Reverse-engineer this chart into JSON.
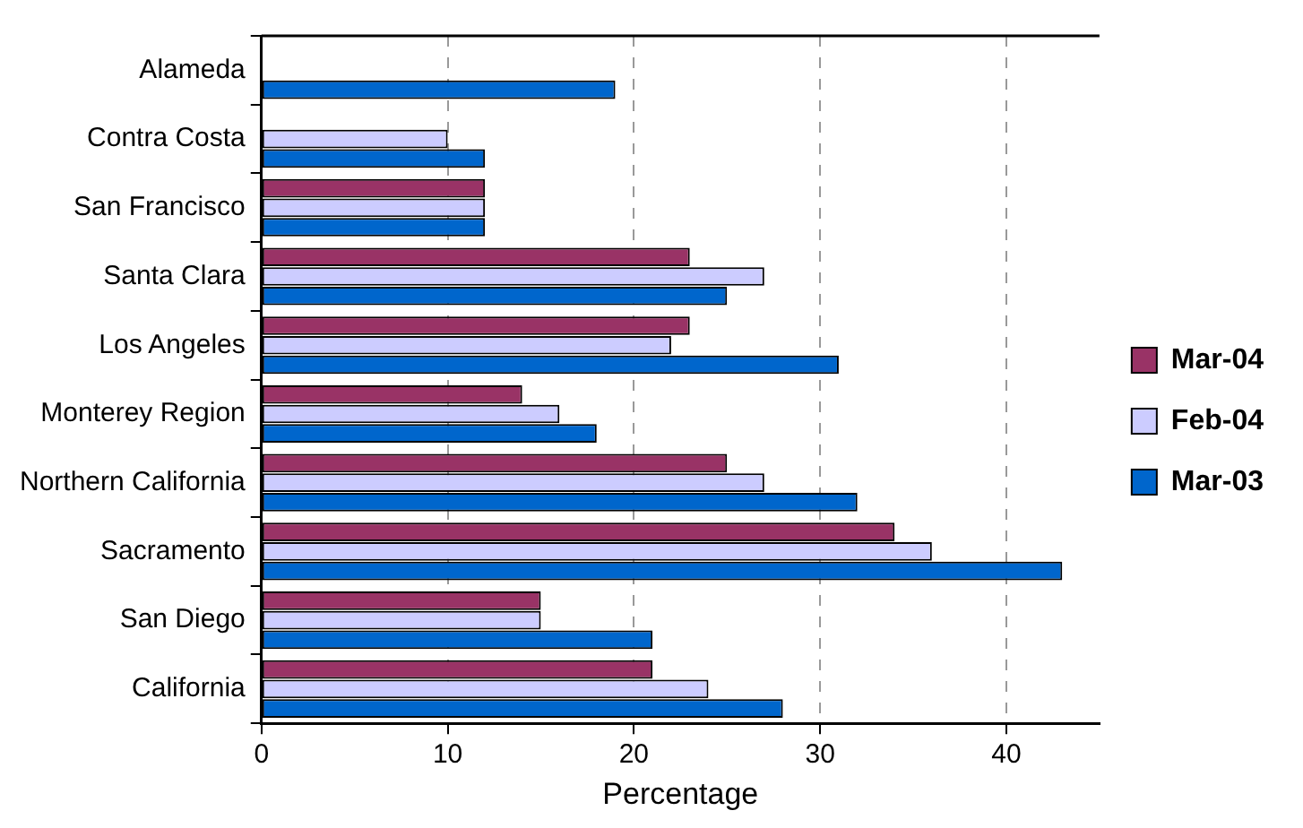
{
  "chart_data": {
    "type": "bar",
    "orientation": "horizontal",
    "xlabel": "Percentage",
    "categories": [
      "Alameda",
      "Contra Costa",
      "San Francisco",
      "Santa Clara",
      "Los Angeles",
      "Monterey Region",
      "Northern California",
      "Sacramento",
      "San Diego",
      "California"
    ],
    "series": [
      {
        "name": "Mar-04",
        "color": "#993366",
        "values": [
          null,
          null,
          12,
          23,
          23,
          14,
          25,
          34,
          15,
          21
        ]
      },
      {
        "name": "Feb-04",
        "color": "#ccccff",
        "values": [
          null,
          10,
          12,
          27,
          22,
          16,
          27,
          36,
          15,
          24
        ]
      },
      {
        "name": "Mar-03",
        "color": "#0066cc",
        "values": [
          19,
          12,
          12,
          25,
          31,
          18,
          32,
          43,
          21,
          28
        ]
      }
    ],
    "xlim": [
      0,
      45
    ],
    "xticks": [
      0,
      10,
      20,
      30,
      40
    ],
    "grid": "x",
    "legend": "right"
  }
}
